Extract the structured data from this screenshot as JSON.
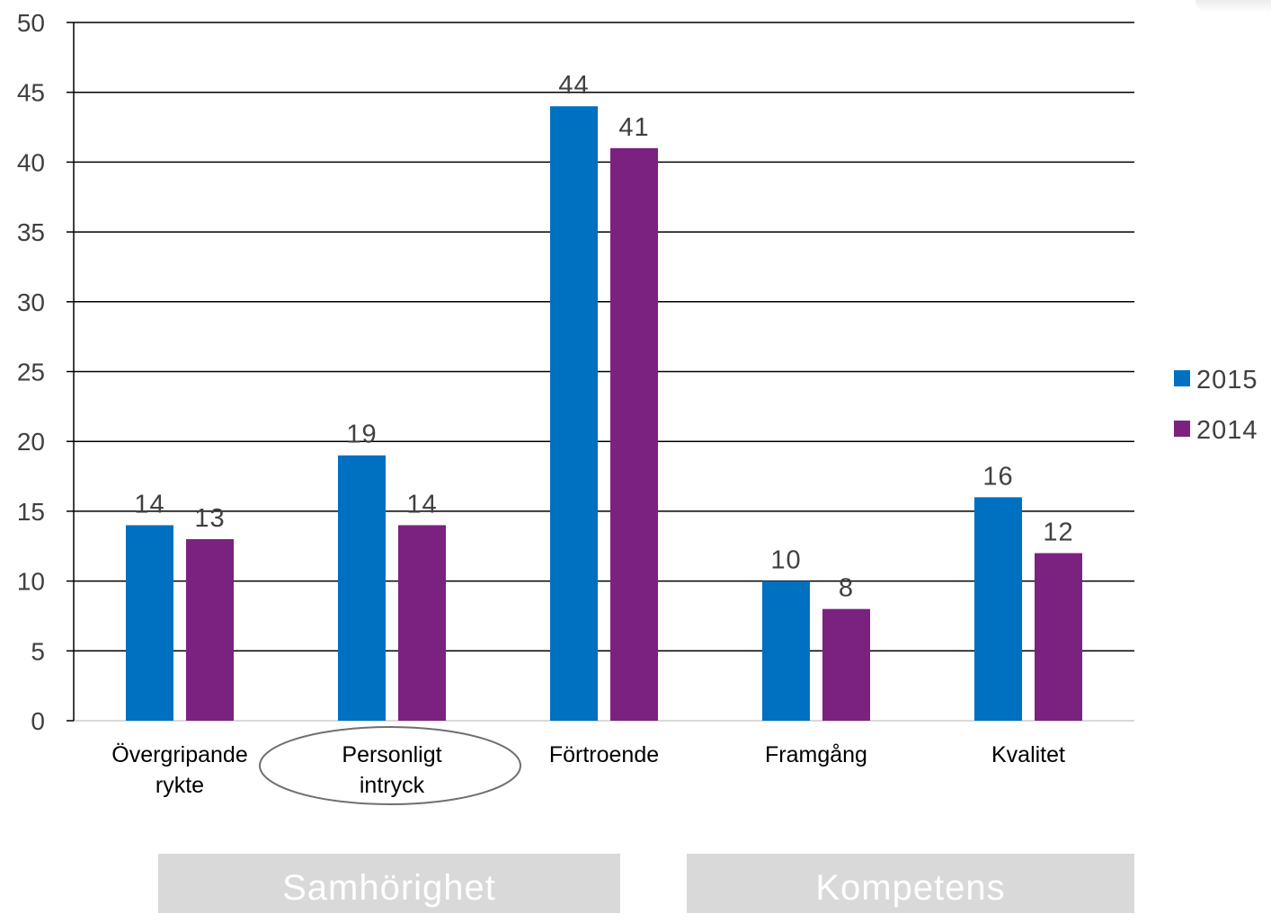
{
  "chart_data": {
    "type": "bar",
    "categories": [
      [
        "Övergripande",
        "rykte"
      ],
      [
        "Personligt",
        "intryck"
      ],
      [
        "Förtroende"
      ],
      [
        "Framgång"
      ],
      [
        "Kvalitet"
      ]
    ],
    "series": [
      {
        "name": "2015",
        "color": "#0070c0",
        "values": [
          14,
          19,
          44,
          10,
          16
        ]
      },
      {
        "name": "2014",
        "color": "#7b2180",
        "values": [
          13,
          14,
          41,
          8,
          12
        ]
      }
    ],
    "yticks": [
      "0",
      "5",
      "10",
      "15",
      "20",
      "25",
      "30",
      "35",
      "40",
      "45",
      "50"
    ],
    "ylim": [
      0,
      50
    ],
    "ystep": 5,
    "grid": true,
    "legend_position": "right",
    "highlighted_category": 1,
    "groups": [
      {
        "label": "Samhörighet",
        "categories": [
          0,
          1
        ]
      },
      {
        "label": "Kompetens",
        "categories": [
          3,
          4
        ]
      }
    ]
  }
}
